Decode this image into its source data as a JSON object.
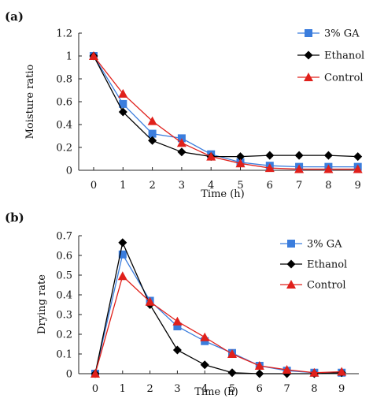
{
  "chart_data": [
    {
      "type": "line",
      "panel_label": "(a)",
      "xlabel": "Time (h)",
      "ylabel": "Moisture ratio",
      "x": [
        0,
        1,
        2,
        3,
        4,
        5,
        6,
        7,
        8,
        9
      ],
      "xlim": [
        0,
        9
      ],
      "ylim": [
        0,
        1.2
      ],
      "yticks": [
        "0",
        "0.2",
        "0.4",
        "0.6",
        "0.8",
        "1",
        "1.2"
      ],
      "xticks": [
        "0",
        "1",
        "2",
        "3",
        "4",
        "5",
        "6",
        "7",
        "8",
        "9"
      ],
      "grid": false,
      "legend_position": "top-right",
      "series": [
        {
          "name": "3% GA",
          "color": "#3b7ddd",
          "marker": "square",
          "values": [
            1.0,
            0.58,
            0.32,
            0.28,
            0.14,
            0.07,
            0.04,
            0.03,
            0.03,
            0.03
          ]
        },
        {
          "name": "Ethanol",
          "color": "#000000",
          "marker": "diamond",
          "values": [
            1.0,
            0.51,
            0.26,
            0.16,
            0.12,
            0.12,
            0.13,
            0.13,
            0.13,
            0.12
          ]
        },
        {
          "name": "Control",
          "color": "#e0201b",
          "marker": "triangle",
          "values": [
            1.0,
            0.67,
            0.43,
            0.24,
            0.12,
            0.06,
            0.02,
            0.01,
            0.01,
            0.01
          ]
        }
      ]
    },
    {
      "type": "line",
      "panel_label": "(b)",
      "xlabel": "Time (h)",
      "ylabel": "Drying rate",
      "x": [
        0,
        1,
        2,
        3,
        4,
        5,
        6,
        7,
        8,
        9
      ],
      "xlim": [
        0,
        9
      ],
      "ylim": [
        0,
        0.7
      ],
      "yticks": [
        "0",
        "0.1",
        "0.2",
        "0.3",
        "0.4",
        "0.5",
        "0.6",
        "0.7"
      ],
      "xticks": [
        "0",
        "1",
        "2",
        "3",
        "4",
        "5",
        "6",
        "7",
        "8",
        "9"
      ],
      "grid": false,
      "legend_position": "top-right",
      "series": [
        {
          "name": "3% GA",
          "color": "#3b7ddd",
          "marker": "square",
          "values": [
            0.0,
            0.605,
            0.37,
            0.24,
            0.165,
            0.105,
            0.04,
            0.015,
            0.005,
            0.005
          ]
        },
        {
          "name": "Ethanol",
          "color": "#000000",
          "marker": "diamond",
          "values": [
            0.0,
            0.665,
            0.35,
            0.12,
            0.045,
            0.005,
            0.0,
            0.0,
            0.0,
            0.005
          ]
        },
        {
          "name": "Control",
          "color": "#e0201b",
          "marker": "triangle",
          "values": [
            0.0,
            0.495,
            0.365,
            0.265,
            0.185,
            0.1,
            0.04,
            0.02,
            0.005,
            0.01
          ]
        }
      ]
    }
  ]
}
